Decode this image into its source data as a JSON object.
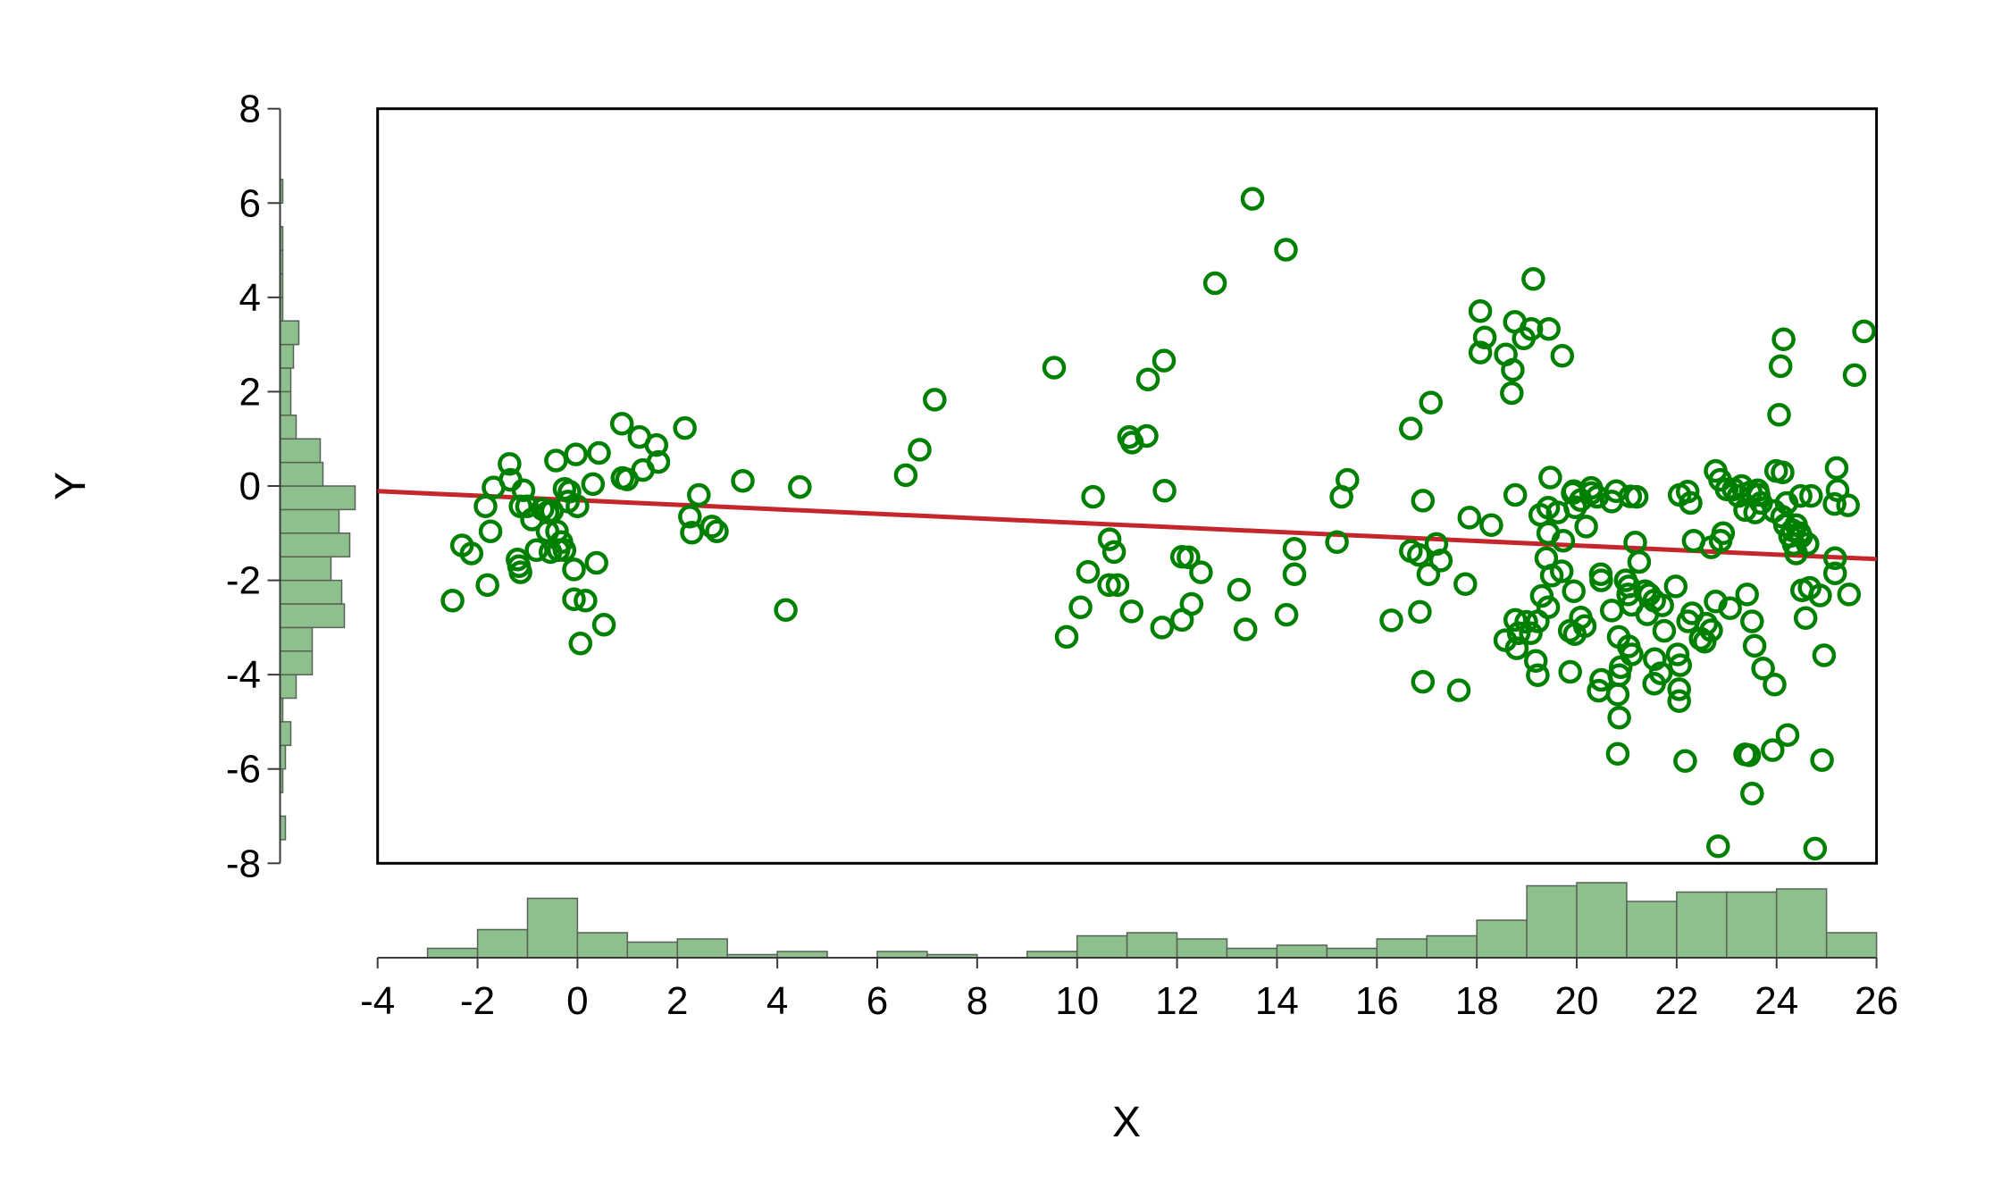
{
  "figure": {
    "background": "#ffffff",
    "frame_color": "#000000",
    "axis_color": "#3a3a3a"
  },
  "chart_data": {
    "type": "scatter",
    "title": "",
    "xlabel": "X",
    "ylabel": "Y",
    "xlim": [
      -4,
      26
    ],
    "ylim": [
      -8,
      8
    ],
    "x_ticks": [
      -4,
      -2,
      0,
      2,
      4,
      6,
      8,
      10,
      12,
      14,
      16,
      18,
      20,
      22,
      24,
      26
    ],
    "y_ticks": [
      8,
      6,
      4,
      2,
      0,
      -2,
      -4,
      -6,
      -8
    ],
    "grid": false,
    "legend": "none",
    "marker": {
      "shape": "open-circle",
      "color": "#008000"
    },
    "regression_line": {
      "color": "#c4262b",
      "x1": -4,
      "y1": -0.11,
      "x2": 26,
      "y2": -1.55
    },
    "histogram_style": {
      "fill": "#8ec08e",
      "stroke": "#566356"
    },
    "x_histogram": {
      "bin_width": 1,
      "start": -3,
      "counts": [
        3,
        9,
        19,
        8,
        5,
        6,
        1,
        2,
        0,
        2,
        1,
        0,
        2,
        7,
        8,
        6,
        3,
        4,
        3,
        6,
        7,
        12,
        23,
        24,
        18,
        21,
        21,
        22,
        8
      ]
    },
    "y_histogram": {
      "bin_width": 0.5,
      "start": -7.5,
      "counts": [
        2,
        0,
        1,
        2,
        4,
        1,
        6,
        12,
        12,
        24,
        23,
        19,
        26,
        22,
        28,
        16,
        15,
        6,
        4,
        4,
        5,
        7,
        1,
        1,
        1,
        1,
        0,
        1
      ]
    },
    "points": [
      [
        -2.5,
        -2.43
      ],
      [
        -2.31,
        -1.26
      ],
      [
        -2.12,
        -1.43
      ],
      [
        -1.84,
        -0.43
      ],
      [
        -1.74,
        -0.96
      ],
      [
        -1.68,
        -0.03
      ],
      [
        -1.36,
        0.47
      ],
      [
        -1.34,
        0.13
      ],
      [
        -1.2,
        -1.56
      ],
      [
        -1.17,
        -1.7
      ],
      [
        -1.14,
        -1.83
      ],
      [
        -1.8,
        -2.1
      ],
      [
        -1.08,
        -0.09
      ],
      [
        -1.01,
        -0.43
      ],
      [
        -1.14,
        -0.43
      ],
      [
        -0.91,
        -0.71
      ],
      [
        -0.7,
        -0.49
      ],
      [
        -0.6,
        -0.56
      ],
      [
        -0.51,
        -0.53
      ],
      [
        -0.6,
        -0.96
      ],
      [
        -0.41,
        -0.96
      ],
      [
        -0.43,
        0.54
      ],
      [
        -0.03,
        0.67
      ],
      [
        0.43,
        0.7
      ],
      [
        -0.32,
        -1.19
      ],
      [
        -0.26,
        -1.36
      ],
      [
        -0.38,
        -1.36
      ],
      [
        -0.54,
        -1.4
      ],
      [
        -0.82,
        -1.36
      ],
      [
        -0.26,
        -0.06
      ],
      [
        -0.16,
        -0.12
      ],
      [
        -0.19,
        -0.33
      ],
      [
        0.0,
        -0.43
      ],
      [
        0.31,
        0.04
      ],
      [
        -0.07,
        -1.77
      ],
      [
        0.38,
        -1.63
      ],
      [
        -0.07,
        -2.4
      ],
      [
        0.16,
        -2.43
      ],
      [
        0.53,
        -2.94
      ],
      [
        0.06,
        -3.34
      ],
      [
        0.89,
        1.32
      ],
      [
        1.24,
        1.04
      ],
      [
        2.15,
        1.23
      ],
      [
        1.58,
        0.87
      ],
      [
        1.62,
        0.51
      ],
      [
        1.31,
        0.34
      ],
      [
        0.9,
        0.17
      ],
      [
        0.99,
        0.14
      ],
      [
        2.43,
        -0.19
      ],
      [
        2.25,
        -0.65
      ],
      [
        2.29,
        -0.99
      ],
      [
        2.69,
        -0.86
      ],
      [
        2.79,
        -0.96
      ],
      [
        3.31,
        0.11
      ],
      [
        4.17,
        -2.63
      ],
      [
        4.45,
        -0.02
      ],
      [
        6.57,
        0.23
      ],
      [
        6.85,
        0.77
      ],
      [
        7.15,
        1.83
      ],
      [
        9.54,
        2.51
      ],
      [
        9.79,
        -3.2
      ],
      [
        10.32,
        -0.23
      ],
      [
        10.65,
        -1.13
      ],
      [
        10.74,
        -1.4
      ],
      [
        10.22,
        -1.82
      ],
      [
        10.64,
        -2.1
      ],
      [
        10.81,
        -2.1
      ],
      [
        10.07,
        -2.57
      ],
      [
        11.42,
        2.26
      ],
      [
        11.74,
        2.66
      ],
      [
        11.04,
        1.04
      ],
      [
        11.1,
        0.92
      ],
      [
        11.39,
        1.06
      ],
      [
        11.75,
        -0.1
      ],
      [
        11.09,
        -2.66
      ],
      [
        11.7,
        -3.0
      ],
      [
        12.76,
        4.3
      ],
      [
        12.1,
        -1.5
      ],
      [
        12.23,
        -1.51
      ],
      [
        12.48,
        -1.83
      ],
      [
        12.29,
        -2.5
      ],
      [
        12.1,
        -2.84
      ],
      [
        13.51,
        6.09
      ],
      [
        13.24,
        -2.2
      ],
      [
        13.37,
        -3.04
      ],
      [
        14.18,
        5.01
      ],
      [
        14.35,
        -1.33
      ],
      [
        14.35,
        -1.87
      ],
      [
        14.19,
        -2.73
      ],
      [
        15.41,
        0.13
      ],
      [
        15.29,
        -0.23
      ],
      [
        15.2,
        -1.19
      ],
      [
        16.68,
        1.22
      ],
      [
        17.08,
        1.77
      ],
      [
        16.92,
        -0.31
      ],
      [
        16.68,
        -1.38
      ],
      [
        16.84,
        -1.46
      ],
      [
        17.19,
        -1.23
      ],
      [
        17.28,
        -1.58
      ],
      [
        17.03,
        -1.87
      ],
      [
        16.29,
        -2.85
      ],
      [
        16.86,
        -2.67
      ],
      [
        16.92,
        -4.15
      ],
      [
        17.64,
        -4.33
      ],
      [
        17.85,
        -0.67
      ],
      [
        17.77,
        -2.08
      ],
      [
        18.29,
        -0.83
      ],
      [
        18.77,
        -0.19
      ],
      [
        18.07,
        3.71
      ],
      [
        18.16,
        3.15
      ],
      [
        18.07,
        2.83
      ],
      [
        18.76,
        3.48
      ],
      [
        19.09,
        3.33
      ],
      [
        18.94,
        3.13
      ],
      [
        19.44,
        3.33
      ],
      [
        18.58,
        2.79
      ],
      [
        18.72,
        2.46
      ],
      [
        18.7,
        1.97
      ],
      [
        19.71,
        2.76
      ],
      [
        19.13,
        4.39
      ],
      [
        19.47,
        0.18
      ],
      [
        19.92,
        -0.15
      ],
      [
        20.08,
        -0.3
      ],
      [
        20.29,
        -0.15
      ],
      [
        19.27,
        -0.61
      ],
      [
        19.43,
        -0.46
      ],
      [
        19.62,
        -0.56
      ],
      [
        19.97,
        -0.45
      ],
      [
        20.19,
        -0.86
      ],
      [
        19.43,
        -1.0
      ],
      [
        19.73,
        -1.16
      ],
      [
        19.94,
        -0.11
      ],
      [
        20.29,
        -0.04
      ],
      [
        20.41,
        -0.23
      ],
      [
        20.7,
        -0.33
      ],
      [
        20.79,
        -0.11
      ],
      [
        19.39,
        -1.53
      ],
      [
        19.5,
        -1.9
      ],
      [
        19.7,
        -1.81
      ],
      [
        19.94,
        -2.23
      ],
      [
        20.08,
        -2.79
      ],
      [
        20.16,
        -2.97
      ],
      [
        19.96,
        -3.14
      ],
      [
        19.86,
        -3.07
      ],
      [
        19.3,
        -2.33
      ],
      [
        19.43,
        -2.57
      ],
      [
        19.22,
        -2.87
      ],
      [
        18.99,
        -2.88
      ],
      [
        18.77,
        -2.84
      ],
      [
        18.84,
        -3.12
      ],
      [
        19.08,
        -3.12
      ],
      [
        18.57,
        -3.27
      ],
      [
        18.8,
        -3.44
      ],
      [
        19.18,
        -3.71
      ],
      [
        19.22,
        -4.01
      ],
      [
        19.87,
        -3.94
      ],
      [
        20.48,
        -1.87
      ],
      [
        20.49,
        -2.0
      ],
      [
        20.7,
        -2.64
      ],
      [
        20.98,
        -2.0
      ],
      [
        21.04,
        -2.13
      ],
      [
        21.03,
        -2.3
      ],
      [
        21.1,
        -2.52
      ],
      [
        20.84,
        -3.2
      ],
      [
        21.04,
        -3.4
      ],
      [
        21.1,
        -3.57
      ],
      [
        20.88,
        -3.84
      ],
      [
        20.85,
        -4.01
      ],
      [
        20.49,
        -4.11
      ],
      [
        20.44,
        -4.34
      ],
      [
        20.82,
        -4.42
      ],
      [
        20.85,
        -4.91
      ],
      [
        20.82,
        -5.68
      ],
      [
        21.07,
        -0.22
      ],
      [
        21.2,
        -0.23
      ],
      [
        21.17,
        -1.2
      ],
      [
        21.25,
        -1.61
      ],
      [
        21.37,
        -2.23
      ],
      [
        21.45,
        -2.3
      ],
      [
        21.55,
        -2.43
      ],
      [
        21.41,
        -2.72
      ],
      [
        21.71,
        -2.53
      ],
      [
        21.75,
        -3.07
      ],
      [
        21.56,
        -3.67
      ],
      [
        21.68,
        -3.97
      ],
      [
        21.55,
        -4.19
      ],
      [
        22.02,
        -3.57
      ],
      [
        22.07,
        -3.8
      ],
      [
        22.05,
        -4.31
      ],
      [
        22.05,
        -4.56
      ],
      [
        22.17,
        -5.83
      ],
      [
        22.06,
        -0.19
      ],
      [
        22.22,
        -0.12
      ],
      [
        22.28,
        -0.36
      ],
      [
        21.98,
        -2.13
      ],
      [
        22.31,
        -2.7
      ],
      [
        22.23,
        -2.87
      ],
      [
        22.59,
        -2.92
      ],
      [
        22.69,
        -3.06
      ],
      [
        22.48,
        -3.24
      ],
      [
        22.56,
        -3.3
      ],
      [
        22.78,
        -2.45
      ],
      [
        23.07,
        -2.59
      ],
      [
        22.34,
        -1.16
      ],
      [
        22.69,
        -1.3
      ],
      [
        22.88,
        -1.16
      ],
      [
        22.93,
        -1.0
      ],
      [
        22.78,
        0.32
      ],
      [
        22.87,
        0.13
      ],
      [
        23.0,
        -0.07
      ],
      [
        23.14,
        -0.07
      ],
      [
        23.3,
        0.0
      ],
      [
        23.62,
        -0.09
      ],
      [
        23.69,
        -0.36
      ],
      [
        23.99,
        0.32
      ],
      [
        24.12,
        0.29
      ],
      [
        24.2,
        -0.36
      ],
      [
        23.24,
        -0.21
      ],
      [
        23.48,
        -0.13
      ],
      [
        23.64,
        -0.19
      ],
      [
        23.37,
        -0.51
      ],
      [
        23.57,
        -0.56
      ],
      [
        23.95,
        -0.53
      ],
      [
        24.11,
        -0.65
      ],
      [
        24.17,
        -0.83
      ],
      [
        24.32,
        -0.94
      ],
      [
        24.46,
        -1.0
      ],
      [
        24.39,
        -0.83
      ],
      [
        24.27,
        -1.06
      ],
      [
        24.49,
        -1.07
      ],
      [
        24.34,
        -1.23
      ],
      [
        24.62,
        -1.23
      ],
      [
        24.39,
        -1.43
      ],
      [
        24.48,
        -0.21
      ],
      [
        24.69,
        -0.21
      ],
      [
        23.41,
        -2.3
      ],
      [
        23.51,
        -2.87
      ],
      [
        23.56,
        -3.39
      ],
      [
        23.73,
        -3.87
      ],
      [
        23.96,
        -4.21
      ],
      [
        23.37,
        -5.69
      ],
      [
        23.45,
        -5.71
      ],
      [
        23.92,
        -5.6
      ],
      [
        24.22,
        -5.28
      ],
      [
        24.91,
        -5.81
      ],
      [
        23.51,
        -6.52
      ],
      [
        24.51,
        -2.21
      ],
      [
        24.66,
        -2.16
      ],
      [
        24.87,
        -2.32
      ],
      [
        24.58,
        -2.8
      ],
      [
        24.95,
        -3.59
      ],
      [
        22.83,
        -7.64
      ],
      [
        24.77,
        -7.69
      ],
      [
        25.2,
        0.38
      ],
      [
        25.22,
        -0.09
      ],
      [
        25.16,
        -0.38
      ],
      [
        25.43,
        -0.41
      ],
      [
        25.17,
        -1.53
      ],
      [
        25.17,
        -1.85
      ],
      [
        25.45,
        -2.3
      ],
      [
        24.14,
        3.11
      ],
      [
        24.08,
        2.54
      ],
      [
        24.05,
        1.51
      ],
      [
        25.75,
        3.28
      ],
      [
        25.56,
        2.35
      ]
    ]
  }
}
